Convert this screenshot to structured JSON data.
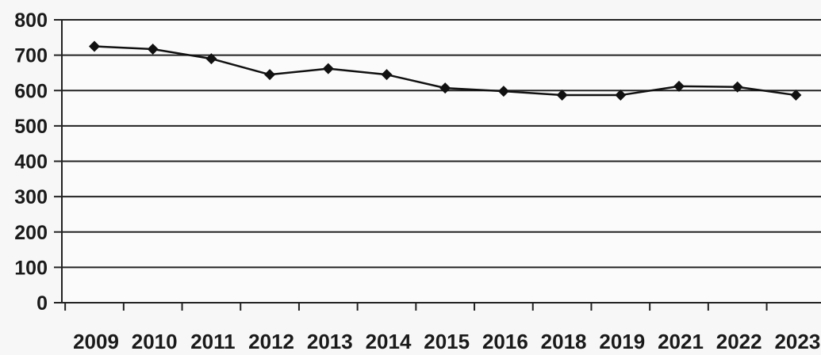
{
  "chart_data": {
    "type": "line",
    "categories": [
      "2009",
      "2010",
      "2011",
      "2012",
      "2013",
      "2014",
      "2015",
      "2016",
      "2018",
      "2019",
      "2021",
      "2022",
      "2023"
    ],
    "series": [
      {
        "values": [
          725,
          717,
          690,
          645,
          662,
          645,
          607,
          598,
          587,
          587,
          612,
          610,
          587
        ]
      }
    ],
    "yticks": [
      "800",
      "700",
      "600",
      "500",
      "400",
      "300",
      "200",
      "100",
      "0"
    ],
    "ylim": [
      0,
      800
    ],
    "grid": true,
    "legend": "none",
    "marker": "diamond",
    "colors": {
      "line": "#111111",
      "grid": "#222222",
      "background": "#f7f7f7"
    }
  }
}
